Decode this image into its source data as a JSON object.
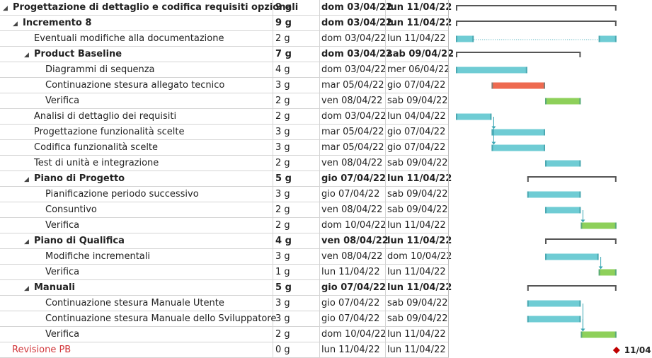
{
  "rows": [
    {
      "name": "Progettazione di dettaglio e codifica requisiti opzionali",
      "duration": "9 g",
      "start": "dom 03/04/22",
      "end": "lun 11/04/22",
      "level": 0,
      "type": "summary",
      "collapse": "◢"
    },
    {
      "name": "Incremento 8",
      "duration": "9 g",
      "start": "dom 03/04/22",
      "end": "lun 11/04/22",
      "level": 1,
      "type": "summary",
      "collapse": "◢"
    },
    {
      "name": "Eventuali modifiche alla documentazione",
      "duration": "2 g",
      "start": "dom 03/04/22",
      "end": "lun 11/04/22",
      "level": 2,
      "type": "task"
    },
    {
      "name": "Product Baseline",
      "duration": "7 g",
      "start": "dom 03/04/22",
      "end": "sab 09/04/22",
      "level": 2,
      "type": "summary",
      "collapse": "◢"
    },
    {
      "name": "Diagrammi di sequenza",
      "duration": "4 g",
      "start": "dom 03/04/22",
      "end": "mer 06/04/22",
      "level": 3,
      "type": "task"
    },
    {
      "name": "Continuazione stesura allegato tecnico",
      "duration": "3 g",
      "start": "mar 05/04/22",
      "end": "gio 07/04/22",
      "level": 3,
      "type": "task"
    },
    {
      "name": "Verifica",
      "duration": "2 g",
      "start": "ven 08/04/22",
      "end": "sab 09/04/22",
      "level": 3,
      "type": "task"
    },
    {
      "name": "Analisi di dettaglio dei requisiti",
      "duration": "2 g",
      "start": "dom 03/04/22",
      "end": "lun 04/04/22",
      "level": 2,
      "type": "task"
    },
    {
      "name": "Progettazione funzionalità scelte",
      "duration": "3 g",
      "start": "mar 05/04/22",
      "end": "gio 07/04/22",
      "level": 2,
      "type": "task"
    },
    {
      "name": "Codifica funzionalità scelte",
      "duration": "3 g",
      "start": "mar 05/04/22",
      "end": "gio 07/04/22",
      "level": 2,
      "type": "task"
    },
    {
      "name": "Test di unità e integrazione",
      "duration": "2 g",
      "start": "ven 08/04/22",
      "end": "sab 09/04/22",
      "level": 2,
      "type": "task"
    },
    {
      "name": "Piano di Progetto",
      "duration": "5 g",
      "start": "gio 07/04/22",
      "end": "lun 11/04/22",
      "level": 2,
      "type": "summary",
      "collapse": "◢"
    },
    {
      "name": "Pianificazione periodo successivo",
      "duration": "3 g",
      "start": "gio 07/04/22",
      "end": "sab 09/04/22",
      "level": 3,
      "type": "task"
    },
    {
      "name": "Consuntivo",
      "duration": "2 g",
      "start": "ven 08/04/22",
      "end": "sab 09/04/22",
      "level": 3,
      "type": "task"
    },
    {
      "name": "Verifica",
      "duration": "2 g",
      "start": "dom 10/04/22",
      "end": "lun 11/04/22",
      "level": 3,
      "type": "task"
    },
    {
      "name": "Piano di Qualifica",
      "duration": "4 g",
      "start": "ven 08/04/22",
      "end": "lun 11/04/22",
      "level": 2,
      "type": "summary",
      "collapse": "◢"
    },
    {
      "name": "Modifiche incrementali",
      "duration": "3 g",
      "start": "ven 08/04/22",
      "end": "dom 10/04/22",
      "level": 3,
      "type": "task"
    },
    {
      "name": "Verifica",
      "duration": "1 g",
      "start": "lun 11/04/22",
      "end": "lun 11/04/22",
      "level": 3,
      "type": "task"
    },
    {
      "name": "Manuali",
      "duration": "5 g",
      "start": "gio 07/04/22",
      "end": "lun 11/04/22",
      "level": 2,
      "type": "summary",
      "collapse": "◢"
    },
    {
      "name": "Continuazione stesura Manuale Utente",
      "duration": "3 g",
      "start": "gio 07/04/22",
      "end": "sab 09/04/22",
      "level": 3,
      "type": "task"
    },
    {
      "name": "Continuazione stesura Manuale dello Sviluppatore",
      "duration": "3 g",
      "start": "gio 07/04/22",
      "end": "sab 09/04/22",
      "level": 3,
      "type": "task"
    },
    {
      "name": "Verifica",
      "duration": "2 g",
      "start": "dom 10/04/22",
      "end": "lun 11/04/22",
      "level": 3,
      "type": "task"
    },
    {
      "name": "Revisione PB",
      "duration": "0 g",
      "start": "lun 11/04/22",
      "end": "lun 11/04/22",
      "level": 0,
      "type": "milestone"
    }
  ],
  "gantt": {
    "colors": {
      "task": "#6fccd4",
      "critical": "#ee6a50",
      "verify": "#8ed05a",
      "summary": "#555555",
      "milestone": "#c00000",
      "link": "#3aa7b4"
    },
    "bars": [
      {
        "row": 0,
        "kind": "summary",
        "start": 0,
        "end": 9
      },
      {
        "row": 1,
        "kind": "summary",
        "start": 0,
        "end": 9
      },
      {
        "row": 2,
        "kind": "split",
        "segments": [
          [
            0,
            1
          ],
          [
            8,
            9
          ]
        ]
      },
      {
        "row": 3,
        "kind": "summary",
        "start": 0,
        "end": 7
      },
      {
        "row": 4,
        "kind": "task",
        "start": 0,
        "end": 4
      },
      {
        "row": 5,
        "kind": "critical",
        "start": 2,
        "end": 5
      },
      {
        "row": 6,
        "kind": "verify",
        "start": 5,
        "end": 7
      },
      {
        "row": 7,
        "kind": "task",
        "start": 0,
        "end": 2
      },
      {
        "row": 8,
        "kind": "task",
        "start": 2,
        "end": 5
      },
      {
        "row": 9,
        "kind": "task",
        "start": 2,
        "end": 5
      },
      {
        "row": 10,
        "kind": "task",
        "start": 5,
        "end": 7
      },
      {
        "row": 11,
        "kind": "summary",
        "start": 4,
        "end": 9
      },
      {
        "row": 12,
        "kind": "task",
        "start": 4,
        "end": 7
      },
      {
        "row": 13,
        "kind": "task",
        "start": 5,
        "end": 7
      },
      {
        "row": 14,
        "kind": "verify",
        "start": 7,
        "end": 9
      },
      {
        "row": 15,
        "kind": "summary",
        "start": 5,
        "end": 9
      },
      {
        "row": 16,
        "kind": "task",
        "start": 5,
        "end": 8
      },
      {
        "row": 17,
        "kind": "verify",
        "start": 8,
        "end": 9
      },
      {
        "row": 18,
        "kind": "summary",
        "start": 4,
        "end": 9
      },
      {
        "row": 19,
        "kind": "task",
        "start": 4,
        "end": 7
      },
      {
        "row": 20,
        "kind": "task",
        "start": 4,
        "end": 7
      },
      {
        "row": 21,
        "kind": "verify",
        "start": 7,
        "end": 9
      },
      {
        "row": 22,
        "kind": "milestone",
        "at": 9,
        "label": "11/04"
      }
    ],
    "links": [
      {
        "from": 7,
        "to": 8
      },
      {
        "from": 7,
        "to": 9
      },
      {
        "from": 13,
        "to": 14
      },
      {
        "from": 16,
        "to": 17
      },
      {
        "from": 19,
        "to": 21
      },
      {
        "from": 20,
        "to": 21
      }
    ]
  }
}
